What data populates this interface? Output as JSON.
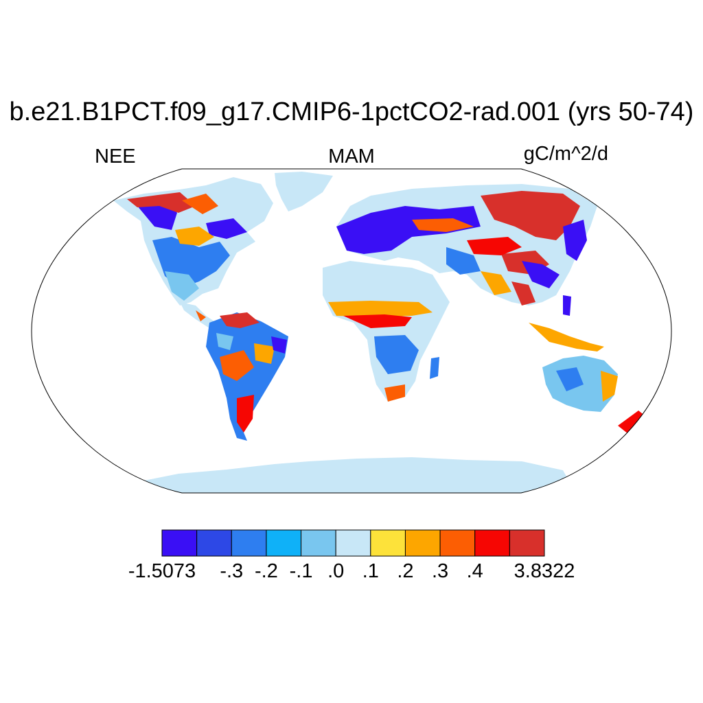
{
  "title": "b.e21.B1PCT.f09_g17.CMIP6-1pctCO2-rad.001 (yrs 50-74)",
  "left_label": "NEE",
  "center_label": "MAM",
  "right_label": "gC/m^2/d",
  "colorbar": {
    "colors": [
      "#3a0ff5",
      "#2d48e6",
      "#2e7ef0",
      "#0fb1f8",
      "#79c6ef",
      "#c8e7f7",
      "#fde23a",
      "#fda600",
      "#fc5e03",
      "#f60603",
      "#d8302b"
    ],
    "labels": [
      "-1.5073",
      "-.3",
      "-.2",
      "-.1",
      ".0",
      ".1",
      ".2",
      ".3",
      ".4",
      "3.8322"
    ]
  },
  "map": {
    "projection": "Robinson",
    "ocean_color": "#ffffff",
    "outline_color": "#000000"
  }
}
